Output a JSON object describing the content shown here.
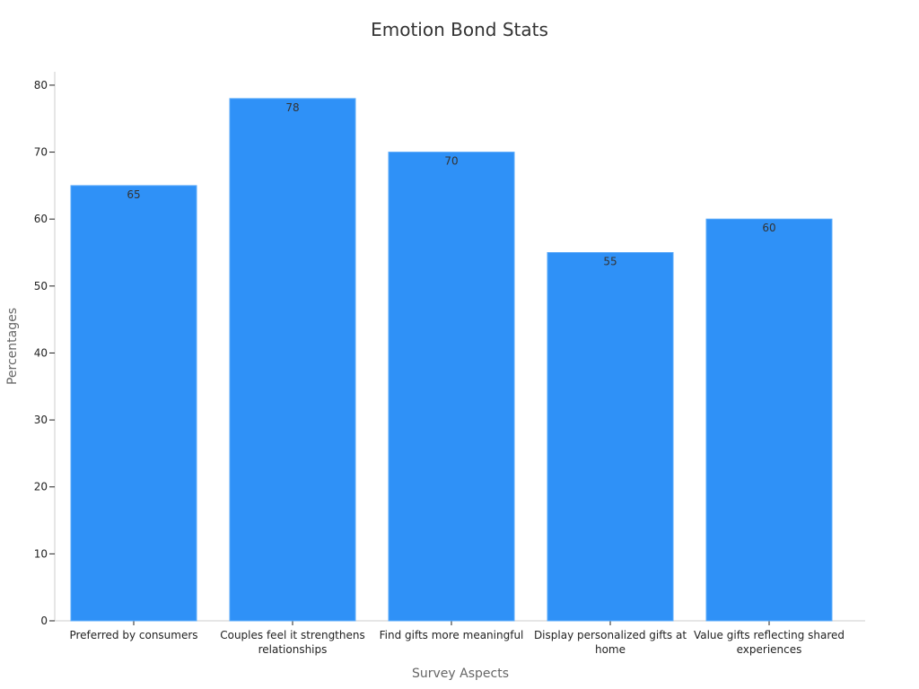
{
  "chart_data": {
    "type": "bar",
    "title": "Emotion Bond Stats",
    "xlabel": "Survey Aspects",
    "ylabel": "Percentages",
    "categories": [
      "Preferred by consumers",
      "Couples feel it strengthens relationships",
      "Find gifts more meaningful",
      "Display personalized gifts at home",
      "Value gifts reflecting shared experiences"
    ],
    "category_lines": [
      [
        "Preferred by consumers"
      ],
      [
        "Couples feel it strengthens",
        "relationships"
      ],
      [
        "Find gifts more meaningful"
      ],
      [
        "Display personalized gifts at",
        "home"
      ],
      [
        "Value gifts reflecting shared",
        "experiences"
      ]
    ],
    "values": [
      65,
      78,
      70,
      55,
      60
    ],
    "data_labels": [
      "65",
      "78",
      "70",
      "55",
      "60"
    ],
    "ylim": [
      0,
      82
    ],
    "yticks": [
      0,
      10,
      20,
      30,
      40,
      50,
      60,
      70,
      80
    ],
    "grid": false,
    "legend": "none",
    "colors": {
      "bar": "#2f91f7",
      "axis": "#cccccc",
      "tick": "#222222"
    }
  }
}
